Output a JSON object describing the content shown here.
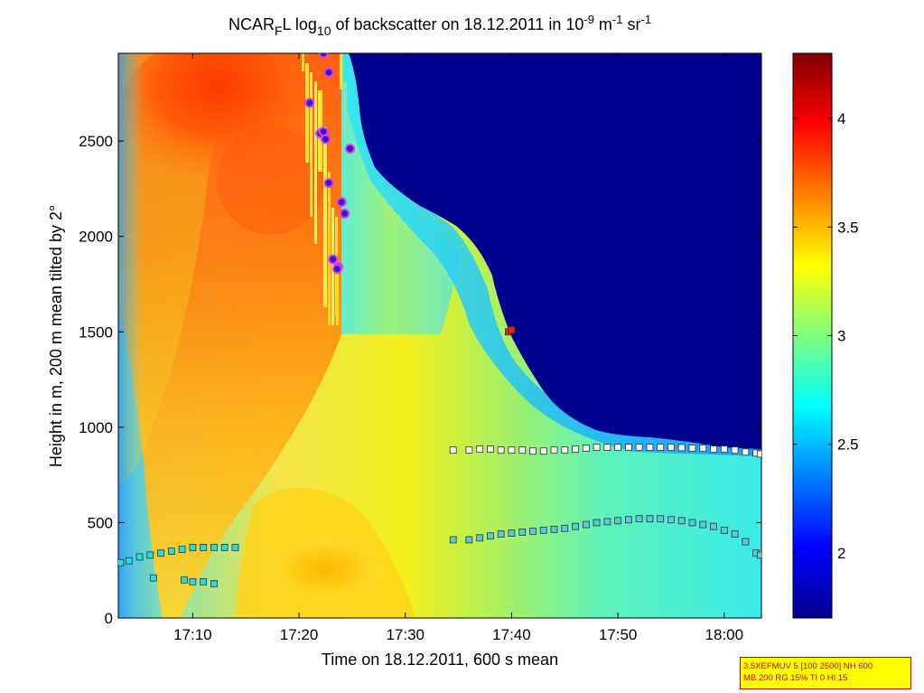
{
  "chart_data": {
    "type": "heatmap",
    "title": {
      "prefix": "NCAR",
      "prefix_sub": "F",
      "mid": "L log",
      "mid_sub": "10",
      "text": " of backscatter on 18.12.2011 in 10",
      "sup1": "-9",
      "unit1": " m",
      "sup2": "-1",
      "unit2": " sr",
      "sup3": "-1"
    },
    "xlabel": "Time on 18.12.2011, 600 s mean",
    "ylabel": "Height in m, 200 m mean tilted by 2°",
    "x_ticks": [
      {
        "value": 1030,
        "label": "17:10"
      },
      {
        "value": 1040,
        "label": "17:20"
      },
      {
        "value": 1050,
        "label": "17:30"
      },
      {
        "value": 1060,
        "label": "17:40"
      },
      {
        "value": 1070,
        "label": "17:50"
      },
      {
        "value": 1080,
        "label": "18:00"
      }
    ],
    "xlim": [
      1023,
      1083.5
    ],
    "y_ticks": [
      0,
      500,
      1000,
      1500,
      2000,
      2500
    ],
    "ylim": [
      0,
      2960
    ],
    "colorbar": {
      "range": [
        1.7,
        4.3
      ],
      "ticks": [
        2,
        2.5,
        3,
        3.5,
        4
      ],
      "tick_labels": [
        "2",
        "2.5",
        "3",
        "3.5",
        "4"
      ],
      "colormap": "jet"
    },
    "marker_series": [
      {
        "marker": "square",
        "fill": "#22dddd",
        "points": [
          [
            1023.2,
            290
          ],
          [
            1024,
            300
          ],
          [
            1025,
            320
          ],
          [
            1026,
            330
          ],
          [
            1027,
            340
          ],
          [
            1028,
            350
          ],
          [
            1029,
            360
          ],
          [
            1030,
            370
          ],
          [
            1031,
            370
          ],
          [
            1032,
            370
          ],
          [
            1033,
            370
          ],
          [
            1034,
            370
          ]
        ]
      },
      {
        "marker": "square",
        "fill": "#22dddd",
        "points": [
          [
            1026.3,
            210
          ],
          [
            1029.2,
            200
          ],
          [
            1030,
            190
          ],
          [
            1031,
            190
          ],
          [
            1032,
            180
          ]
        ]
      },
      {
        "marker": "square",
        "fill": "#55ccdd",
        "points": [
          [
            1054.5,
            410
          ],
          [
            1056,
            410
          ],
          [
            1057,
            420
          ],
          [
            1058,
            430
          ],
          [
            1059,
            440
          ],
          [
            1060,
            445
          ],
          [
            1061,
            450
          ],
          [
            1062,
            455
          ],
          [
            1063,
            460
          ],
          [
            1064,
            465
          ],
          [
            1065,
            470
          ],
          [
            1066,
            480
          ],
          [
            1067,
            490
          ],
          [
            1068,
            500
          ],
          [
            1069,
            505
          ],
          [
            1070,
            510
          ],
          [
            1071,
            515
          ],
          [
            1072,
            520
          ],
          [
            1073,
            520
          ],
          [
            1074,
            520
          ],
          [
            1075,
            515
          ],
          [
            1076,
            510
          ],
          [
            1077,
            500
          ],
          [
            1078,
            490
          ],
          [
            1079,
            480
          ],
          [
            1080,
            460
          ],
          [
            1081,
            440
          ],
          [
            1082,
            400
          ],
          [
            1083,
            340
          ],
          [
            1083.4,
            330
          ]
        ]
      },
      {
        "marker": "square",
        "fill": "#f4f4f4",
        "points": [
          [
            1054.5,
            880
          ],
          [
            1056,
            880
          ],
          [
            1057,
            885
          ],
          [
            1058,
            885
          ],
          [
            1059,
            880
          ],
          [
            1060,
            880
          ],
          [
            1061,
            880
          ],
          [
            1062,
            875
          ],
          [
            1063,
            875
          ],
          [
            1064,
            880
          ],
          [
            1065,
            880
          ],
          [
            1066,
            885
          ],
          [
            1067,
            890
          ],
          [
            1068,
            895
          ],
          [
            1069,
            895
          ],
          [
            1070,
            895
          ],
          [
            1071,
            895
          ],
          [
            1072,
            895
          ],
          [
            1073,
            895
          ],
          [
            1074,
            895
          ],
          [
            1075,
            895
          ],
          [
            1076,
            893
          ],
          [
            1077,
            890
          ],
          [
            1078,
            890
          ],
          [
            1079,
            885
          ],
          [
            1080,
            885
          ],
          [
            1081,
            880
          ],
          [
            1082,
            870
          ],
          [
            1083,
            865
          ],
          [
            1083.4,
            860
          ]
        ]
      },
      {
        "marker": "square",
        "fill": "#ee2200",
        "points": [
          [
            1059.7,
            1500
          ],
          [
            1060,
            1510
          ]
        ]
      },
      {
        "marker": "circle",
        "fill": "#2222cc",
        "edge": "#ee33ee",
        "points": [
          [
            1042.3,
            2960
          ],
          [
            1042.8,
            2860
          ],
          [
            1041.0,
            2700
          ],
          [
            1042.0,
            2540
          ],
          [
            1042.3,
            2550
          ],
          [
            1042.5,
            2510
          ],
          [
            1044.8,
            2460
          ],
          [
            1042.8,
            2280
          ],
          [
            1044.0,
            2180
          ],
          [
            1044.3,
            2120
          ],
          [
            1043.2,
            1880
          ],
          [
            1043.7,
            1840
          ],
          [
            1043.6,
            1830
          ]
        ]
      }
    ]
  },
  "info_box": {
    "line1": "3.5XEFMUV 5 [100 2500] NH 600",
    "line2": "MB 200 RG 15% TI 0 HI 15"
  }
}
